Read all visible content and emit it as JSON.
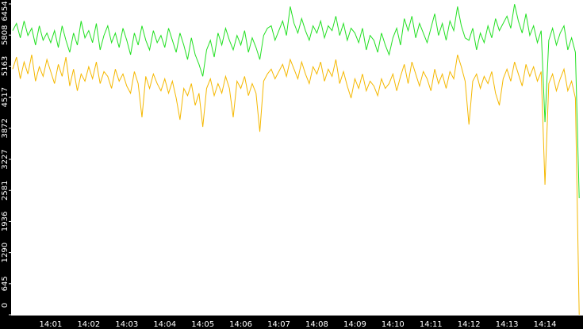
{
  "chart_data": {
    "type": "line",
    "categories": [
      null,
      null,
      null,
      null,
      null,
      null,
      null,
      null,
      null,
      null,
      "14:01",
      null,
      null,
      null,
      null,
      null,
      null,
      null,
      null,
      null,
      "14:02",
      null,
      null,
      null,
      null,
      null,
      null,
      null,
      null,
      null,
      "14:03",
      null,
      null,
      null,
      null,
      null,
      null,
      null,
      null,
      null,
      "14:04",
      null,
      null,
      null,
      null,
      null,
      null,
      null,
      null,
      null,
      "14:05",
      null,
      null,
      null,
      null,
      null,
      null,
      null,
      null,
      null,
      "14:06",
      null,
      null,
      null,
      null,
      null,
      null,
      null,
      null,
      null,
      "14:07",
      null,
      null,
      null,
      null,
      null,
      null,
      null,
      null,
      null,
      "14:08",
      null,
      null,
      null,
      null,
      null,
      null,
      null,
      null,
      null,
      "14:09",
      null,
      null,
      null,
      null,
      null,
      null,
      null,
      null,
      null,
      "14:10",
      null,
      null,
      null,
      null,
      null,
      null,
      null,
      null,
      null,
      "14:11",
      null,
      null,
      null,
      null,
      null,
      null,
      null,
      null,
      null,
      "14:12",
      null,
      null,
      null,
      null,
      null,
      null,
      null,
      null,
      null,
      "14:13",
      null,
      null,
      null,
      null,
      null,
      null,
      null,
      null,
      null,
      "14:14",
      null,
      null,
      null,
      null,
      null,
      null,
      null,
      null,
      null
    ],
    "series": [
      {
        "color": "#22e022",
        "values": [
          5900,
          6050,
          5750,
          6100,
          5800,
          5950,
          5600,
          6000,
          5700,
          5850,
          5650,
          5900,
          5550,
          6000,
          5700,
          5450,
          5850,
          5600,
          6100,
          5750,
          5900,
          5650,
          6050,
          5500,
          5800,
          6000,
          5650,
          5850,
          5550,
          5950,
          5700,
          5400,
          5850,
          5600,
          6000,
          5700,
          5500,
          5900,
          5650,
          5800,
          5550,
          5950,
          5700,
          5450,
          5850,
          5600,
          5300,
          5750,
          5400,
          5200,
          4950,
          5500,
          5700,
          5350,
          5850,
          5600,
          5950,
          5700,
          5500,
          5800,
          5600,
          5900,
          5450,
          5750,
          5550,
          5300,
          5800,
          5950,
          6000,
          5700,
          5900,
          6100,
          5800,
          6400,
          6050,
          5850,
          6150,
          5900,
          5700,
          6000,
          5850,
          6100,
          5750,
          6000,
          5900,
          6200,
          5800,
          6050,
          5700,
          5950,
          5850,
          5650,
          5950,
          5500,
          5800,
          5700,
          5450,
          5850,
          5600,
          5400,
          5750,
          5950,
          5600,
          6150,
          5900,
          6200,
          5750,
          6050,
          5850,
          5650,
          5950,
          6250,
          5800,
          6050,
          5700,
          6100,
          5900,
          6400,
          6000,
          5750,
          5700,
          5950,
          5500,
          5850,
          5650,
          6000,
          5750,
          6150,
          5900,
          6050,
          6200,
          5950,
          6450,
          6100,
          5850,
          6250,
          5800,
          6000,
          5650,
          5900,
          4000,
          5700,
          5950,
          5600,
          5850,
          6000,
          5500,
          5750,
          5450,
          2420
        ]
      },
      {
        "color": "#f5b800",
        "values": [
          5100,
          5350,
          4900,
          5250,
          5000,
          5400,
          4850,
          5150,
          4950,
          5300,
          5050,
          4800,
          5200,
          4950,
          5350,
          4750,
          5100,
          4650,
          5000,
          4850,
          5150,
          4900,
          5250,
          4800,
          5050,
          4950,
          4700,
          5100,
          4850,
          5000,
          4750,
          4600,
          5050,
          4800,
          4100,
          4950,
          4700,
          5000,
          4800,
          4650,
          4900,
          4600,
          4850,
          4500,
          4050,
          4700,
          4550,
          4800,
          4350,
          4600,
          3900,
          4700,
          4900,
          4550,
          4800,
          4600,
          4950,
          4700,
          4100,
          4850,
          4700,
          4950,
          4550,
          4800,
          4600,
          3800,
          4850,
          5000,
          5100,
          4900,
          5050,
          5200,
          4950,
          5300,
          5100,
          4900,
          5250,
          5000,
          4800,
          5150,
          5000,
          5250,
          4850,
          5100,
          4950,
          5300,
          4800,
          5050,
          4750,
          4500,
          4900,
          4700,
          5000,
          4650,
          4850,
          4750,
          4550,
          4900,
          4700,
          4800,
          5000,
          4650,
          4950,
          5200,
          4800,
          5250,
          5000,
          4750,
          5050,
          4900,
          4650,
          5100,
          4800,
          5000,
          4700,
          5050,
          4900,
          5400,
          5150,
          4850,
          3950,
          4850,
          5000,
          4700,
          4950,
          4800,
          5050,
          4600,
          4350,
          4900,
          5100,
          4850,
          5250,
          5000,
          4750,
          5200,
          4950,
          5150,
          4850,
          5050,
          2700,
          4800,
          5000,
          4650,
          4900,
          5100,
          4650,
          4850,
          4500,
          0
        ]
      }
    ],
    "ylim": [
      0,
      6454
    ],
    "yticks": [
      0,
      645,
      1290,
      1936,
      2581,
      3227,
      3872,
      4517,
      5163,
      5808,
      6454
    ]
  }
}
